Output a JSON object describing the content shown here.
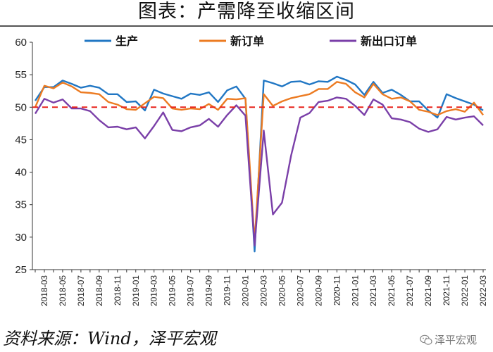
{
  "title": "图表：产需降至收缩区间",
  "source": "资料来源：Wind，泽平宏观",
  "watermark": "泽平宏观",
  "watermark_icon": "wechat-icon",
  "chart_data": {
    "type": "line",
    "x": [
      "2018-02",
      "2018-03",
      "2018-04",
      "2018-05",
      "2018-06",
      "2018-07",
      "2018-08",
      "2018-09",
      "2018-10",
      "2018-11",
      "2018-12",
      "2019-01",
      "2019-02",
      "2019-03",
      "2019-04",
      "2019-05",
      "2019-06",
      "2019-07",
      "2019-08",
      "2019-09",
      "2019-10",
      "2019-11",
      "2019-12",
      "2020-01",
      "2020-02",
      "2020-03",
      "2020-04",
      "2020-05",
      "2020-06",
      "2020-07",
      "2020-08",
      "2020-09",
      "2020-10",
      "2020-11",
      "2020-12",
      "2021-01",
      "2021-02",
      "2021-03",
      "2021-04",
      "2021-05",
      "2021-06",
      "2021-07",
      "2021-08",
      "2021-09",
      "2021-10",
      "2021-11",
      "2021-12",
      "2022-01",
      "2022-02",
      "2022-03"
    ],
    "xticks": [
      "2018-03",
      "2018-05",
      "2018-07",
      "2018-09",
      "2018-11",
      "2019-01",
      "2019-03",
      "2019-05",
      "2019-07",
      "2019-09",
      "2019-11",
      "2020-01",
      "2020-03",
      "2020-05",
      "2020-07",
      "2020-09",
      "2020-11",
      "2021-01",
      "2021-03",
      "2021-05",
      "2021-07",
      "2021-09",
      "2021-11",
      "2022-01",
      "2022-03"
    ],
    "ylim": [
      25,
      60
    ],
    "yticks": [
      25,
      30,
      35,
      40,
      45,
      50,
      55,
      60
    ],
    "reference_line": {
      "value": 50,
      "color": "#e8231c",
      "style": "dashed"
    },
    "legend_position": "top",
    "series": [
      {
        "name": "生产",
        "color": "#2177c4",
        "values": [
          51.0,
          53.1,
          53.1,
          54.1,
          53.6,
          53.0,
          53.3,
          53.0,
          52.0,
          52.0,
          50.8,
          50.9,
          49.5,
          52.7,
          52.1,
          51.7,
          51.3,
          52.1,
          51.9,
          52.3,
          50.8,
          52.6,
          53.2,
          51.3,
          27.8,
          54.1,
          53.7,
          53.2,
          53.9,
          54.0,
          53.5,
          54.0,
          53.9,
          54.7,
          54.2,
          53.5,
          51.9,
          53.9,
          52.2,
          52.7,
          51.9,
          50.9,
          50.9,
          49.5,
          48.4,
          52.0,
          51.4,
          50.9,
          50.4,
          49.5
        ]
      },
      {
        "name": "新订单",
        "color": "#ec7b22",
        "values": [
          50.0,
          53.3,
          52.9,
          53.8,
          53.2,
          52.3,
          52.2,
          52.0,
          50.8,
          50.4,
          49.7,
          49.6,
          50.6,
          51.6,
          51.4,
          49.8,
          49.6,
          49.8,
          49.7,
          50.5,
          49.6,
          51.3,
          51.2,
          51.4,
          29.3,
          52.0,
          50.2,
          50.9,
          51.4,
          51.7,
          52.0,
          52.8,
          52.8,
          53.9,
          53.6,
          52.3,
          51.5,
          53.6,
          52.0,
          51.3,
          51.5,
          50.9,
          49.6,
          49.3,
          48.8,
          49.4,
          49.7,
          49.3,
          50.7,
          48.8
        ]
      },
      {
        "name": "新出口订单",
        "color": "#7a3fa8",
        "values": [
          49.0,
          51.3,
          50.7,
          51.2,
          49.8,
          49.8,
          49.4,
          48.0,
          46.9,
          47.0,
          46.6,
          46.9,
          45.2,
          47.1,
          49.2,
          46.5,
          46.3,
          46.9,
          47.2,
          48.2,
          47.0,
          48.8,
          50.3,
          48.7,
          28.7,
          46.4,
          33.5,
          35.3,
          42.6,
          48.4,
          49.1,
          50.8,
          51.0,
          51.5,
          51.3,
          50.2,
          48.8,
          51.2,
          50.4,
          48.3,
          48.1,
          47.7,
          46.7,
          46.2,
          46.6,
          48.5,
          48.1,
          48.4,
          48.6,
          47.2
        ]
      }
    ]
  }
}
